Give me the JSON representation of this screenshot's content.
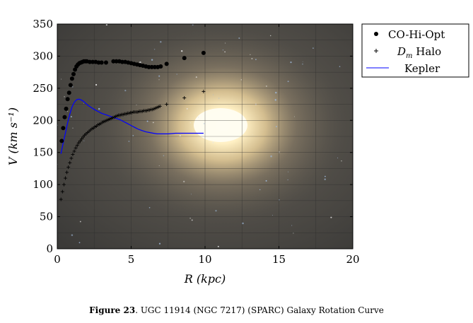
{
  "caption": {
    "label": "Figure 23",
    "text": ". UGC 11914 (NGC 7217) (SPARC) Galaxy Rotation Curve"
  },
  "chart_data": {
    "type": "scatter",
    "xlabel": "R (kpc)",
    "ylabel": "V (km s⁻¹)",
    "xlim": [
      0,
      20
    ],
    "ylim": [
      0,
      350
    ],
    "xticks": [
      0,
      5,
      10,
      15,
      20
    ],
    "yticks": [
      0,
      50,
      100,
      150,
      200,
      250,
      300,
      350
    ],
    "grid": true,
    "legend_position": "outside-top-right",
    "background": "galaxy image",
    "series": [
      {
        "name": "CO-Hi-Opt",
        "marker": "dot",
        "color": "#000000",
        "x": [
          0.3,
          0.4,
          0.5,
          0.6,
          0.7,
          0.8,
          0.9,
          1.0,
          1.1,
          1.2,
          1.3,
          1.4,
          1.5,
          1.6,
          1.7,
          1.8,
          1.9,
          2.0,
          2.2,
          2.4,
          2.6,
          2.8,
          3.0,
          3.3,
          3.8,
          4.0,
          4.2,
          4.4,
          4.6,
          4.8,
          5.0,
          5.2,
          5.4,
          5.6,
          5.8,
          6.0,
          6.2,
          6.4,
          6.6,
          6.8,
          7.0,
          7.4,
          8.6,
          9.9
        ],
        "y": [
          168,
          188,
          205,
          218,
          233,
          243,
          255,
          265,
          272,
          279,
          284,
          287,
          289,
          290,
          291,
          292,
          292,
          292,
          291,
          291,
          291,
          290,
          290,
          290,
          292,
          292,
          292,
          291,
          291,
          290,
          289,
          288,
          287,
          286,
          285,
          284,
          283,
          283,
          283,
          283,
          284,
          288,
          297,
          305
        ]
      },
      {
        "name": "D_m Halo",
        "name_parts": [
          "D",
          "m",
          " Halo"
        ],
        "marker": "plus",
        "color": "#000000",
        "x": [
          0.25,
          0.35,
          0.45,
          0.55,
          0.65,
          0.75,
          0.85,
          0.95,
          1.05,
          1.15,
          1.25,
          1.35,
          1.45,
          1.55,
          1.65,
          1.75,
          1.85,
          1.95,
          2.05,
          2.15,
          2.25,
          2.35,
          2.45,
          2.55,
          2.65,
          2.75,
          2.85,
          2.95,
          3.05,
          3.15,
          3.25,
          3.35,
          3.45,
          3.55,
          3.65,
          3.75,
          3.85,
          3.95,
          4.05,
          4.15,
          4.25,
          4.35,
          4.45,
          4.55,
          4.65,
          4.75,
          4.85,
          4.95,
          5.05,
          5.15,
          5.25,
          5.35,
          5.45,
          5.55,
          5.65,
          5.75,
          5.85,
          5.95,
          6.05,
          6.15,
          6.25,
          6.35,
          6.45,
          6.55,
          6.65,
          6.75,
          6.85,
          6.95,
          7.4,
          8.6,
          9.9
        ],
        "y": [
          77,
          89,
          100,
          110,
          119,
          127,
          134,
          141,
          147,
          152,
          157,
          161,
          165,
          168,
          171,
          174,
          177,
          179,
          181,
          183,
          185,
          187,
          188,
          190,
          191,
          193,
          194,
          195,
          197,
          198,
          199,
          200,
          201,
          202,
          203,
          204,
          205,
          206,
          207,
          208,
          208,
          209,
          209,
          210,
          210,
          211,
          211,
          212,
          212,
          213,
          213,
          213,
          213,
          214,
          214,
          214,
          215,
          215,
          215,
          216,
          216,
          217,
          217,
          218,
          219,
          220,
          221,
          222,
          225,
          235,
          245
        ]
      },
      {
        "name": "Kepler",
        "marker": "line",
        "color": "#0000ff",
        "x": [
          0.25,
          0.4,
          0.55,
          0.7,
          0.85,
          1.0,
          1.15,
          1.3,
          1.45,
          1.6,
          1.75,
          1.9,
          2.1,
          2.3,
          2.5,
          2.75,
          3.0,
          3.25,
          3.5,
          3.75,
          4.0,
          4.25,
          4.5,
          4.75,
          5.0,
          5.25,
          5.5,
          5.75,
          6.0,
          6.25,
          6.5,
          6.75,
          7.0,
          7.5,
          8.0,
          8.5,
          9.0,
          9.5,
          9.9
        ],
        "y": [
          148,
          165,
          180,
          196,
          210,
          221,
          228,
          232,
          233,
          232,
          230,
          227,
          223,
          220,
          217,
          214,
          211,
          209,
          207,
          205,
          203,
          201,
          198,
          195,
          192,
          189,
          186,
          184,
          182,
          181,
          180,
          179,
          179,
          179,
          180,
          180,
          180,
          180,
          180
        ]
      }
    ]
  }
}
